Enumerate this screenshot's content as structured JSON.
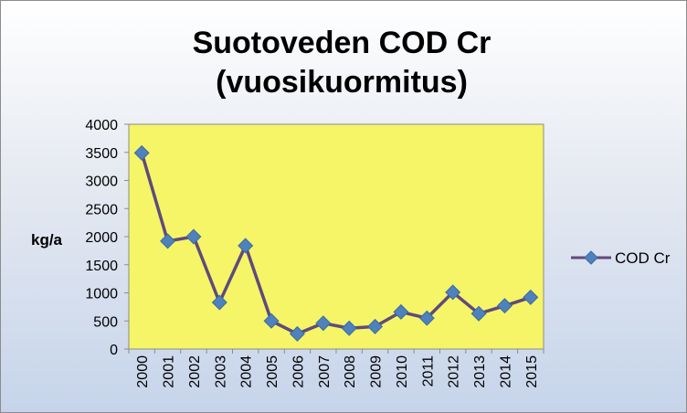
{
  "chart_data": {
    "type": "line",
    "title": [
      "Suotoveden COD Cr",
      "(vuosikuormitus)"
    ],
    "xlabel": "",
    "ylabel": "kg/a",
    "categories": [
      "2000",
      "2001",
      "2002",
      "2003",
      "2004",
      "2005",
      "2006",
      "2007",
      "2008",
      "2009",
      "2010",
      "2011",
      "2012",
      "2013",
      "2014",
      "2015"
    ],
    "series": [
      {
        "name": "COD Cr",
        "values": [
          3490,
          1920,
          2000,
          830,
          1840,
          500,
          270,
          460,
          370,
          400,
          660,
          550,
          1010,
          630,
          770,
          920
        ],
        "line_color": "#604a7b",
        "marker_color": "#4f81bd"
      }
    ],
    "ylim": [
      0,
      4000
    ],
    "yticks": [
      0,
      500,
      1000,
      1500,
      2000,
      2500,
      3000,
      3500,
      4000
    ],
    "grid": false,
    "plot_background": "#f5f567",
    "legend": "right"
  }
}
